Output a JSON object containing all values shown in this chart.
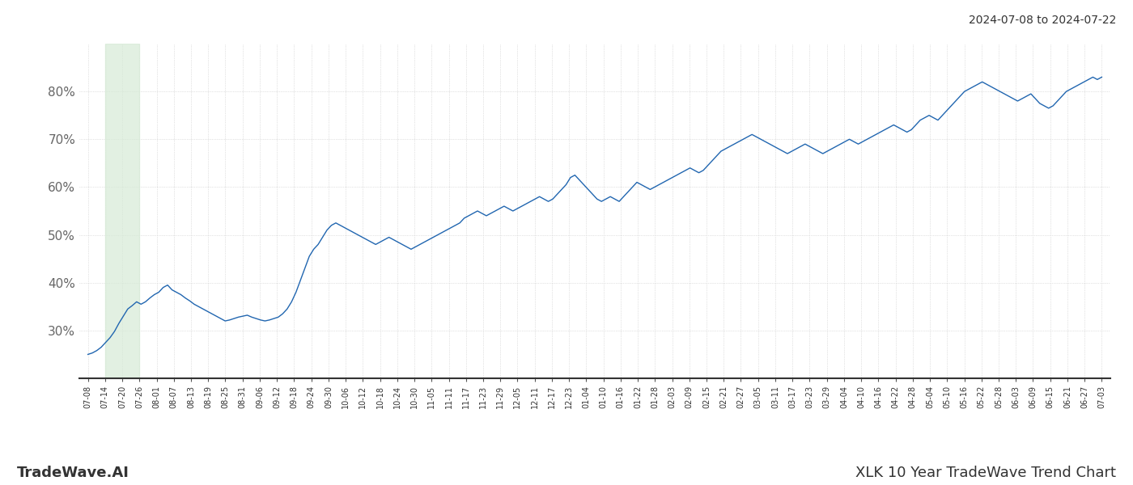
{
  "title_right": "2024-07-08 to 2024-07-22",
  "footer_left": "TradeWave.AI",
  "footer_right": "XLK 10 Year TradeWave Trend Chart",
  "line_color": "#2166b0",
  "line_width": 1.0,
  "highlight_color": "#d6ead6",
  "highlight_alpha": 0.7,
  "background_color": "#ffffff",
  "grid_color": "#c8c8c8",
  "ytick_values": [
    30,
    40,
    50,
    60,
    70,
    80
  ],
  "ylim": [
    20,
    90
  ],
  "highlight_xstart": 1,
  "highlight_xend": 3,
  "xtick_labels": [
    "07-08",
    "07-14",
    "07-20",
    "07-26",
    "08-01",
    "08-07",
    "08-13",
    "08-19",
    "08-25",
    "08-31",
    "09-06",
    "09-12",
    "09-18",
    "09-24",
    "09-30",
    "10-06",
    "10-12",
    "10-18",
    "10-24",
    "10-30",
    "11-05",
    "11-11",
    "11-17",
    "11-23",
    "11-29",
    "12-05",
    "12-11",
    "12-17",
    "12-23",
    "01-04",
    "01-10",
    "01-16",
    "01-22",
    "01-28",
    "02-03",
    "02-09",
    "02-15",
    "02-21",
    "02-27",
    "03-05",
    "03-11",
    "03-17",
    "03-23",
    "03-29",
    "04-04",
    "04-10",
    "04-16",
    "04-22",
    "04-28",
    "05-04",
    "05-10",
    "05-16",
    "05-22",
    "05-28",
    "06-03",
    "06-09",
    "06-15",
    "06-21",
    "06-27",
    "07-03"
  ],
  "data_points": [
    25.0,
    25.3,
    25.8,
    26.5,
    27.5,
    28.5,
    29.8,
    31.5,
    33.0,
    34.5,
    35.2,
    36.0,
    35.5,
    36.0,
    36.8,
    37.5,
    38.0,
    39.0,
    39.5,
    38.5,
    38.0,
    37.5,
    36.8,
    36.2,
    35.5,
    35.0,
    34.5,
    34.0,
    33.5,
    33.0,
    32.5,
    32.0,
    32.2,
    32.5,
    32.8,
    33.0,
    33.2,
    32.8,
    32.5,
    32.2,
    32.0,
    32.2,
    32.5,
    32.8,
    33.5,
    34.5,
    36.0,
    38.0,
    40.5,
    43.0,
    45.5,
    47.0,
    48.0,
    49.5,
    51.0,
    52.0,
    52.5,
    52.0,
    51.5,
    51.0,
    50.5,
    50.0,
    49.5,
    49.0,
    48.5,
    48.0,
    48.5,
    49.0,
    49.5,
    49.0,
    48.5,
    48.0,
    47.5,
    47.0,
    47.5,
    48.0,
    48.5,
    49.0,
    49.5,
    50.0,
    50.5,
    51.0,
    51.5,
    52.0,
    52.5,
    53.5,
    54.0,
    54.5,
    55.0,
    54.5,
    54.0,
    54.5,
    55.0,
    55.5,
    56.0,
    55.5,
    55.0,
    55.5,
    56.0,
    56.5,
    57.0,
    57.5,
    58.0,
    57.5,
    57.0,
    57.5,
    58.5,
    59.5,
    60.5,
    62.0,
    62.5,
    61.5,
    60.5,
    59.5,
    58.5,
    57.5,
    57.0,
    57.5,
    58.0,
    57.5,
    57.0,
    58.0,
    59.0,
    60.0,
    61.0,
    60.5,
    60.0,
    59.5,
    60.0,
    60.5,
    61.0,
    61.5,
    62.0,
    62.5,
    63.0,
    63.5,
    64.0,
    63.5,
    63.0,
    63.5,
    64.5,
    65.5,
    66.5,
    67.5,
    68.0,
    68.5,
    69.0,
    69.5,
    70.0,
    70.5,
    71.0,
    70.5,
    70.0,
    69.5,
    69.0,
    68.5,
    68.0,
    67.5,
    67.0,
    67.5,
    68.0,
    68.5,
    69.0,
    68.5,
    68.0,
    67.5,
    67.0,
    67.5,
    68.0,
    68.5,
    69.0,
    69.5,
    70.0,
    69.5,
    69.0,
    69.5,
    70.0,
    70.5,
    71.0,
    71.5,
    72.0,
    72.5,
    73.0,
    72.5,
    72.0,
    71.5,
    72.0,
    73.0,
    74.0,
    74.5,
    75.0,
    74.5,
    74.0,
    75.0,
    76.0,
    77.0,
    78.0,
    79.0,
    80.0,
    80.5,
    81.0,
    81.5,
    82.0,
    81.5,
    81.0,
    80.5,
    80.0,
    79.5,
    79.0,
    78.5,
    78.0,
    78.5,
    79.0,
    79.5,
    78.5,
    77.5,
    77.0,
    76.5,
    77.0,
    78.0,
    79.0,
    80.0,
    80.5,
    81.0,
    81.5,
    82.0,
    82.5,
    83.0,
    82.5,
    83.0
  ]
}
